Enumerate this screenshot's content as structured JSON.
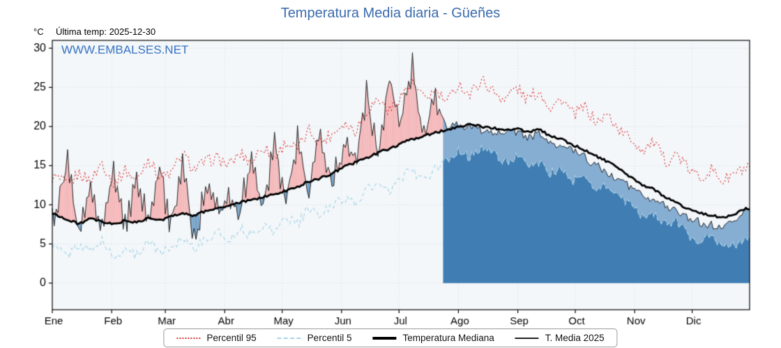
{
  "header": {
    "title": "Temperatura Media diaria - Güeñes",
    "unit_label": "°C",
    "last_temp_label": "Última temp: 2025-12-30",
    "watermark": "WWW.EMBALSES.NET"
  },
  "legend": {
    "items": [
      {
        "label": "Percentil 95",
        "style": "dotted",
        "color": "#dd3333"
      },
      {
        "label": "Percentil 5",
        "style": "dashed",
        "color": "#a8d4e6"
      },
      {
        "label": "Temperatura Mediana",
        "style": "solid-thick",
        "color": "#000000"
      },
      {
        "label": "T. Media 2025",
        "style": "solid-thin",
        "color": "#222222"
      }
    ]
  },
  "chart_data": {
    "type": "line",
    "title": "Temperatura Media diaria - Güeñes",
    "ylabel": "°C",
    "ylim": [
      -3.4,
      31
    ],
    "y_ticks": [
      0,
      5,
      10,
      15,
      20,
      25,
      30
    ],
    "month_labels": [
      "Ene",
      "Feb",
      "Mar",
      "Abr",
      "May",
      "Jun",
      "Jul",
      "Ago",
      "Sep",
      "Oct",
      "Nov",
      "Dic"
    ],
    "month_start_days": [
      1,
      32,
      60,
      91,
      121,
      152,
      182,
      213,
      244,
      274,
      305,
      335
    ],
    "days_in_year": 365,
    "fill_start_day": 205,
    "x_day_of_year": [
      3,
      9,
      15,
      21,
      27,
      33,
      39,
      45,
      51,
      57,
      63,
      69,
      75,
      81,
      87,
      93,
      99,
      105,
      111,
      117,
      123,
      129,
      135,
      141,
      147,
      153,
      159,
      165,
      171,
      177,
      183,
      189,
      195,
      201,
      207,
      213,
      219,
      225,
      231,
      237,
      243,
      249,
      255,
      261,
      267,
      273,
      279,
      285,
      291,
      297,
      303,
      309,
      315,
      321,
      327,
      333,
      339,
      345,
      351,
      357,
      363
    ],
    "series": [
      {
        "name": "Percentil 95",
        "line": "dotted",
        "color": "#dd3333",
        "values": [
          13.5,
          12.5,
          14.0,
          13.0,
          15.5,
          12.5,
          14.5,
          13.0,
          16.0,
          13.5,
          14.0,
          16.5,
          14.5,
          15.5,
          16.0,
          15.0,
          16.5,
          15.5,
          17.5,
          16.0,
          18.0,
          17.0,
          19.5,
          18.0,
          19.0,
          20.5,
          19.5,
          22.0,
          23.5,
          22.0,
          24.0,
          25.5,
          23.5,
          24.5,
          23.0,
          25.5,
          24.0,
          26.0,
          24.5,
          23.5,
          25.0,
          23.5,
          24.5,
          22.5,
          23.5,
          21.5,
          22.5,
          20.5,
          21.5,
          19.5,
          18.5,
          17.0,
          18.0,
          15.5,
          16.5,
          14.5,
          13.5,
          14.5,
          13.0,
          14.0,
          14.5
        ]
      },
      {
        "name": "Percentil 5",
        "line": "dashed",
        "color": "#a8d4e6",
        "values": [
          4.5,
          3.5,
          5.0,
          4.0,
          5.5,
          3.0,
          4.5,
          3.5,
          5.5,
          4.0,
          4.5,
          6.0,
          4.5,
          5.5,
          6.5,
          5.5,
          7.0,
          6.0,
          7.5,
          6.5,
          8.5,
          7.5,
          9.5,
          8.5,
          10.0,
          11.0,
          10.0,
          12.0,
          12.5,
          11.5,
          13.5,
          14.5,
          13.0,
          14.5,
          15.5,
          17.0,
          16.0,
          17.5,
          16.5,
          15.5,
          16.0,
          15.0,
          15.5,
          14.0,
          14.5,
          13.0,
          13.5,
          12.0,
          12.5,
          11.0,
          10.0,
          8.5,
          9.0,
          7.5,
          8.0,
          6.0,
          5.5,
          6.0,
          4.5,
          5.0,
          5.5
        ]
      },
      {
        "name": "Temperatura Mediana",
        "line": "solid-thick",
        "color": "#000000",
        "values": [
          8.8,
          8.0,
          7.6,
          8.2,
          7.8,
          7.5,
          8.0,
          7.7,
          8.3,
          8.0,
          8.5,
          9.0,
          8.6,
          9.2,
          9.6,
          9.8,
          10.3,
          10.6,
          11.0,
          11.3,
          11.8,
          12.3,
          13.0,
          13.4,
          14.0,
          14.8,
          15.4,
          16.0,
          16.6,
          17.2,
          17.8,
          18.4,
          18.8,
          19.2,
          19.6,
          20.0,
          20.3,
          20.0,
          19.8,
          19.5,
          19.8,
          19.3,
          19.6,
          18.8,
          18.4,
          17.6,
          17.0,
          16.2,
          15.5,
          14.5,
          13.5,
          12.5,
          12.0,
          11.0,
          10.2,
          9.5,
          9.0,
          8.6,
          8.4,
          8.8,
          9.5
        ]
      },
      {
        "name": "T. Media 2025",
        "line": "solid-thin",
        "color": "#222222",
        "values": [
          9.0,
          15.5,
          5.5,
          13.0,
          7.0,
          14.0,
          7.5,
          12.5,
          8.0,
          14.5,
          7.0,
          16.0,
          5.0,
          12.0,
          9.0,
          11.5,
          9.5,
          15.5,
          10.0,
          17.5,
          10.5,
          18.5,
          11.0,
          19.5,
          12.5,
          17.5,
          15.5,
          24.0,
          16.5,
          26.0,
          20.0,
          27.5,
          18.5,
          24.0,
          20.0,
          20.3,
          19.8,
          19.6,
          19.4,
          18.9,
          19.4,
          18.7,
          19.0,
          18.0,
          17.6,
          16.8,
          16.0,
          15.0,
          14.2,
          13.2,
          12.2,
          11.3,
          10.8,
          9.8,
          9.0,
          8.3,
          7.8,
          7.4,
          7.2,
          7.8,
          9.6
        ]
      }
    ],
    "colors": {
      "plot_background": "#f3f7fa",
      "grid": "#cdd8e0",
      "fill_above_median": "#f5b8ba",
      "fill_below_median": "#76a3c8",
      "fill_lower_band": "#3f7db3",
      "fill_upper_band": "#86add2",
      "axis": "#000000"
    },
    "noise": {
      "p95": 0.8,
      "p5": 0.65,
      "median": 0.15,
      "t2025_pre": 1.3,
      "t2025_post": 0.55,
      "alternation_pre": 0.7
    },
    "legend_position": "bottom"
  }
}
